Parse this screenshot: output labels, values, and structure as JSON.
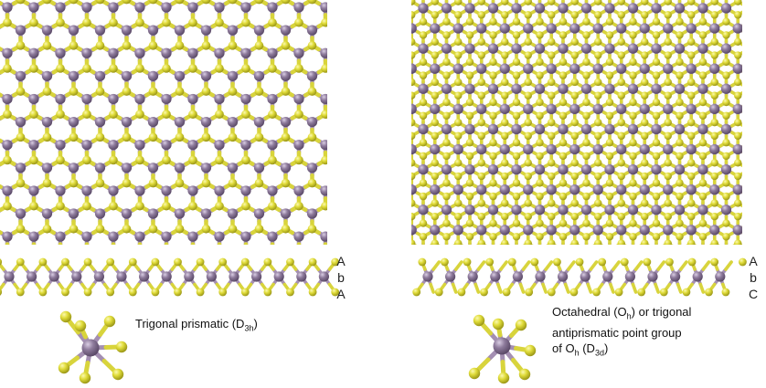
{
  "colors": {
    "metal": "#8e7b9c",
    "metal_dark": "#5b4a68",
    "chalcogen": "#e0dc3a",
    "chalcogen_dark": "#9c9818",
    "bond_metal": "#a48fb2",
    "bond_chalcogen": "#d8d43c"
  },
  "left_panel": {
    "stacking": [
      "A",
      "b",
      "A"
    ],
    "caption_main": "Trigonal prismatic (D",
    "caption_sub": "3h",
    "caption_end": ")"
  },
  "right_panel": {
    "stacking": [
      "A",
      "b",
      "C"
    ],
    "caption_line1_a": "Octahedral (O",
    "caption_line1_sub": "h",
    "caption_line1_b": ") or trigonal",
    "caption_line2": "antiprismatic point group",
    "caption_line3_a": "of O",
    "caption_line3_sub": "h",
    "caption_line3_b": " (D",
    "caption_line3_sub2": "3d",
    "caption_line3_c": ")"
  }
}
